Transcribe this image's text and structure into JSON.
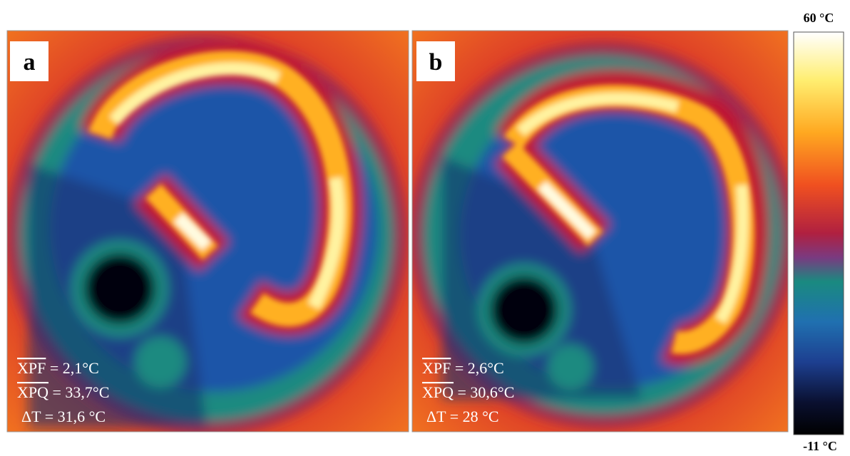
{
  "panels": [
    {
      "label": "a",
      "lines": [
        {
          "name": "XPF",
          "value": "= 2,1°C"
        },
        {
          "name": "XPQ",
          "value": "= 33,7°C"
        },
        {
          "name": "ΔT",
          "value": "= 31,6 °C"
        }
      ]
    },
    {
      "label": "b",
      "lines": [
        {
          "name": "XPF",
          "value": "= 2,6°C"
        },
        {
          "name": "XPQ",
          "value": "= 30,6°C"
        },
        {
          "name": "ΔT",
          "value": "= 28 °C"
        }
      ]
    }
  ],
  "colorbar": {
    "max_label": "60 °C",
    "min_label": "-11 °C"
  }
}
